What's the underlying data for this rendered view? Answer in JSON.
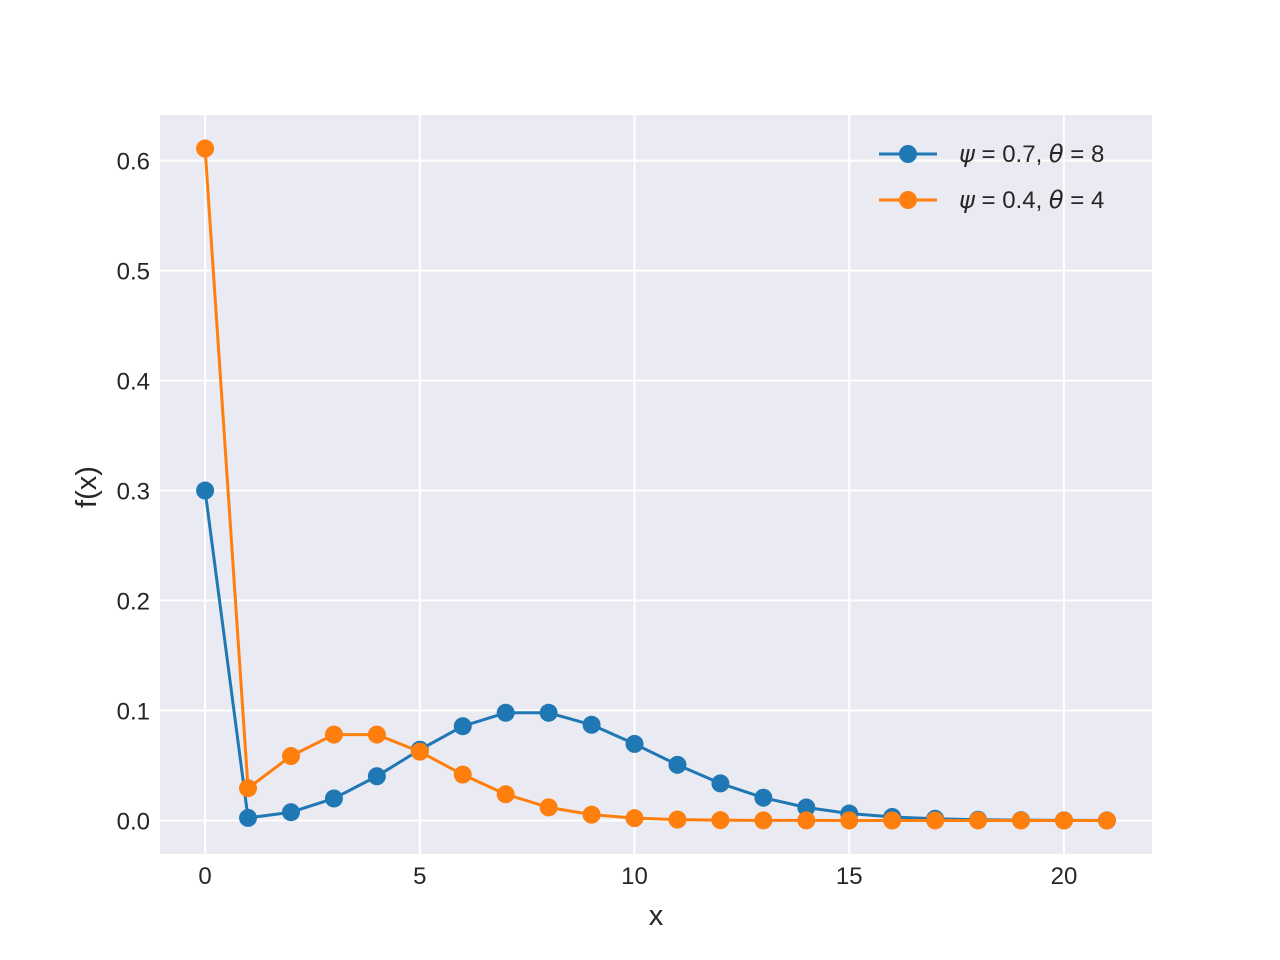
{
  "chart_data": {
    "type": "line",
    "title": "",
    "xlabel": "x",
    "ylabel": "f(x)",
    "xlim": [
      -1.05,
      22.05
    ],
    "ylim": [
      -0.0305,
      0.6415
    ],
    "xticks": [
      0,
      5,
      10,
      15,
      20
    ],
    "xtick_labels": [
      "0",
      "5",
      "10",
      "15",
      "20"
    ],
    "yticks": [
      0.0,
      0.1,
      0.2,
      0.3,
      0.4,
      0.5,
      0.6
    ],
    "ytick_labels": [
      "0.0",
      "0.1",
      "0.2",
      "0.3",
      "0.4",
      "0.5",
      "0.6"
    ],
    "grid": true,
    "background": "#eaeaf2",
    "legend_position": "top-right",
    "x": [
      0,
      1,
      2,
      3,
      4,
      5,
      6,
      7,
      8,
      9,
      10,
      11,
      12,
      13,
      14,
      15,
      16,
      17,
      18,
      19,
      20,
      21
    ],
    "series": [
      {
        "psi": "0.7",
        "theta": "8",
        "color": "#1f77b4",
        "values": [
          0.3,
          0.0023,
          0.0075,
          0.02,
          0.0402,
          0.0643,
          0.0857,
          0.0979,
          0.0979,
          0.087,
          0.0696,
          0.0506,
          0.0337,
          0.0207,
          0.0118,
          0.0063,
          0.0032,
          0.0015,
          0.0007,
          0.0003,
          0.0001,
          5e-05
        ]
      },
      {
        "psi": "0.4",
        "theta": "4",
        "color": "#ff7f0e",
        "values": [
          0.611,
          0.0293,
          0.0586,
          0.0781,
          0.0781,
          0.0625,
          0.0417,
          0.0238,
          0.0119,
          0.0053,
          0.0021,
          0.0008,
          0.0003,
          0.0001,
          3e-05,
          1e-05,
          0.0,
          0.0,
          0.0,
          0.0,
          0.0,
          0.0
        ]
      }
    ]
  }
}
